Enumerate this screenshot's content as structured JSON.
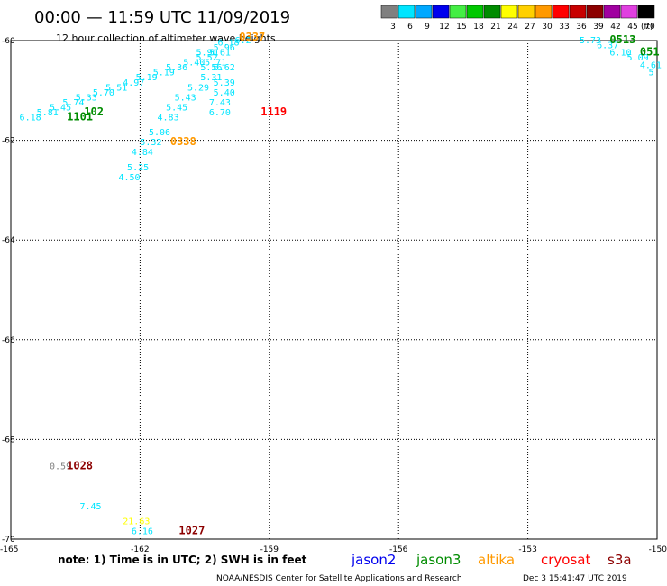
{
  "header": {
    "title": "00:00 — 11:59 UTC 11/09/2019",
    "subtitle": "12 hour collection of altimeter wave heights"
  },
  "legend": {
    "unit": "(ft)",
    "bins": [
      {
        "label": "3",
        "color": "#808080"
      },
      {
        "label": "6",
        "color": "#00e5ff"
      },
      {
        "label": "9",
        "color": "#00a8ff"
      },
      {
        "label": "12",
        "color": "#0000ee"
      },
      {
        "label": "15",
        "color": "#44ee44"
      },
      {
        "label": "18",
        "color": "#00c800"
      },
      {
        "label": "21",
        "color": "#008c00"
      },
      {
        "label": "24",
        "color": "#ffff00"
      },
      {
        "label": "27",
        "color": "#ffd000"
      },
      {
        "label": "30",
        "color": "#ff9900"
      },
      {
        "label": "33",
        "color": "#ff0000"
      },
      {
        "label": "36",
        "color": "#c80000"
      },
      {
        "label": "39",
        "color": "#8c0000"
      },
      {
        "label": "42",
        "color": "#a000a0"
      },
      {
        "label": "45",
        "color": "#e040e0"
      },
      {
        "label": "70",
        "color": "#000000"
      }
    ]
  },
  "axes": {
    "lat_labels": [
      "-60",
      "-62",
      "-64",
      "-66",
      "-68",
      "-70"
    ],
    "lon_labels": [
      "-165",
      "-162",
      "-159",
      "-156",
      "-153",
      "-150"
    ]
  },
  "chart_data": {
    "type": "scatter",
    "x_unit": "deg longitude",
    "y_unit": "deg latitude",
    "xlim": [
      -165,
      -150
    ],
    "ylim": [
      -70,
      -60
    ],
    "wave_height_points": [
      {
        "lon": -164.8,
        "lat": -61.6,
        "v": "6.18",
        "color": "#00e5ff"
      },
      {
        "lon": -164.4,
        "lat": -61.5,
        "v": "5.81",
        "color": "#00e5ff"
      },
      {
        "lon": -164.1,
        "lat": -61.4,
        "v": "5.45",
        "color": "#00e5ff"
      },
      {
        "lon": -163.8,
        "lat": -61.3,
        "v": "5.74",
        "color": "#00e5ff"
      },
      {
        "lon": -163.5,
        "lat": -61.2,
        "v": "5.33",
        "color": "#00e5ff"
      },
      {
        "lon": -163.1,
        "lat": -61.1,
        "v": "5.70",
        "color": "#00e5ff"
      },
      {
        "lon": -162.8,
        "lat": -61.0,
        "v": "5.51",
        "color": "#00e5ff"
      },
      {
        "lon": -162.4,
        "lat": -60.9,
        "v": "4.97",
        "color": "#00e5ff"
      },
      {
        "lon": -162.1,
        "lat": -60.8,
        "v": "5.19",
        "color": "#00e5ff"
      },
      {
        "lon": -161.7,
        "lat": -60.7,
        "v": "5.19",
        "color": "#00e5ff"
      },
      {
        "lon": -161.4,
        "lat": -60.6,
        "v": "5.36",
        "color": "#00e5ff"
      },
      {
        "lon": -161.0,
        "lat": -60.5,
        "v": "5.40",
        "color": "#00e5ff"
      },
      {
        "lon": -160.7,
        "lat": -60.4,
        "v": "5.52",
        "color": "#00e5ff"
      },
      {
        "lon": -160.4,
        "lat": -60.3,
        "v": "5.61",
        "color": "#00e5ff"
      },
      {
        "lon": -160.3,
        "lat": -60.2,
        "v": "5.96",
        "color": "#00e5ff"
      },
      {
        "lon": -160.2,
        "lat": -60.1,
        "v": "6.18",
        "color": "#00e5ff"
      },
      {
        "lon": -159.8,
        "lat": -60.05,
        "v": "6.2",
        "color": "#00e5ff"
      },
      {
        "lon": -160.7,
        "lat": -60.3,
        "v": "5.90",
        "color": "#00e5ff"
      },
      {
        "lon": -160.5,
        "lat": -60.5,
        "v": "5.71",
        "color": "#00e5ff"
      },
      {
        "lon": -160.6,
        "lat": -60.6,
        "v": "5.56",
        "color": "#00e5ff"
      },
      {
        "lon": -160.3,
        "lat": -60.6,
        "v": "6.62",
        "color": "#00e5ff"
      },
      {
        "lon": -160.6,
        "lat": -60.8,
        "v": "5.31",
        "color": "#00e5ff"
      },
      {
        "lon": -160.3,
        "lat": -60.9,
        "v": "5.39",
        "color": "#00e5ff"
      },
      {
        "lon": -160.9,
        "lat": -61.0,
        "v": "5.29",
        "color": "#00e5ff"
      },
      {
        "lon": -160.3,
        "lat": -61.1,
        "v": "5.40",
        "color": "#00e5ff"
      },
      {
        "lon": -161.2,
        "lat": -61.2,
        "v": "5.43",
        "color": "#00e5ff"
      },
      {
        "lon": -160.4,
        "lat": -61.3,
        "v": "7.43",
        "color": "#00e5ff"
      },
      {
        "lon": -161.4,
        "lat": -61.4,
        "v": "5.45",
        "color": "#00e5ff"
      },
      {
        "lon": -160.4,
        "lat": -61.5,
        "v": "6.70",
        "color": "#00e5ff"
      },
      {
        "lon": -161.6,
        "lat": -61.6,
        "v": "4.83",
        "color": "#00e5ff"
      },
      {
        "lon": -161.8,
        "lat": -61.9,
        "v": "5.06",
        "color": "#00e5ff"
      },
      {
        "lon": -162.0,
        "lat": -62.1,
        "v": "5.32",
        "color": "#00e5ff"
      },
      {
        "lon": -162.2,
        "lat": -62.3,
        "v": "4.84",
        "color": "#00e5ff"
      },
      {
        "lon": -162.3,
        "lat": -62.6,
        "v": "5.25",
        "color": "#00e5ff"
      },
      {
        "lon": -162.5,
        "lat": -62.8,
        "v": "4.50",
        "color": "#00e5ff"
      },
      {
        "lon": -151.8,
        "lat": -60.05,
        "v": "5.73",
        "color": "#00e5ff"
      },
      {
        "lon": -151.4,
        "lat": -60.15,
        "v": "6.37",
        "color": "#00e5ff"
      },
      {
        "lon": -151.1,
        "lat": -60.3,
        "v": "6.10",
        "color": "#00e5ff"
      },
      {
        "lon": -150.7,
        "lat": -60.4,
        "v": "5.09",
        "color": "#00e5ff"
      },
      {
        "lon": -150.4,
        "lat": -60.55,
        "v": "4.61",
        "color": "#00e5ff"
      },
      {
        "lon": -150.2,
        "lat": -60.7,
        "v": "5",
        "color": "#00e5ff"
      },
      {
        "lon": -164.1,
        "lat": -68.6,
        "v": "0.59",
        "color": "#808080"
      },
      {
        "lon": -163.4,
        "lat": -69.4,
        "v": "7.45",
        "color": "#00e5ff"
      },
      {
        "lon": -162.4,
        "lat": -69.7,
        "v": "21.63",
        "color": "#ffff00"
      },
      {
        "lon": -162.2,
        "lat": -69.9,
        "v": "6.16",
        "color": "#00e5ff"
      }
    ],
    "pass_times": [
      {
        "lon": -163.7,
        "lat": -61.6,
        "t": "1101",
        "color": "#008c00"
      },
      {
        "lon": -163.3,
        "lat": -61.5,
        "t": "102",
        "color": "#008c00"
      },
      {
        "lon": -159.7,
        "lat": -60.0,
        "t": "0337",
        "color": "#ff9900"
      },
      {
        "lon": -159.2,
        "lat": -61.5,
        "t": "1119",
        "color": "#ff0000"
      },
      {
        "lon": -161.3,
        "lat": -62.1,
        "t": "0338",
        "color": "#ff9900"
      },
      {
        "lon": -151.1,
        "lat": -60.05,
        "t": "0513",
        "color": "#008c00"
      },
      {
        "lon": -150.4,
        "lat": -60.3,
        "t": "051",
        "color": "#008c00"
      },
      {
        "lon": -163.7,
        "lat": -68.6,
        "t": "1028",
        "color": "#8c0000"
      },
      {
        "lon": -161.1,
        "lat": -69.9,
        "t": "1027",
        "color": "#8c0000"
      }
    ]
  },
  "note": "note: 1) Time is in UTC; 2) SWH is in feet",
  "satellites": [
    {
      "name": "jason2",
      "color": "#0000ee"
    },
    {
      "name": "jason3",
      "color": "#008c00"
    },
    {
      "name": "altika",
      "color": "#ff9900"
    },
    {
      "name": "cryosat",
      "color": "#ff0000"
    },
    {
      "name": "s3a",
      "color": "#8c0000"
    }
  ],
  "footer": {
    "credit": "NOAA/NESDIS Center for Satellite Applications and Research",
    "timestamp": "Dec  3 15:41:47 UTC 2019"
  }
}
